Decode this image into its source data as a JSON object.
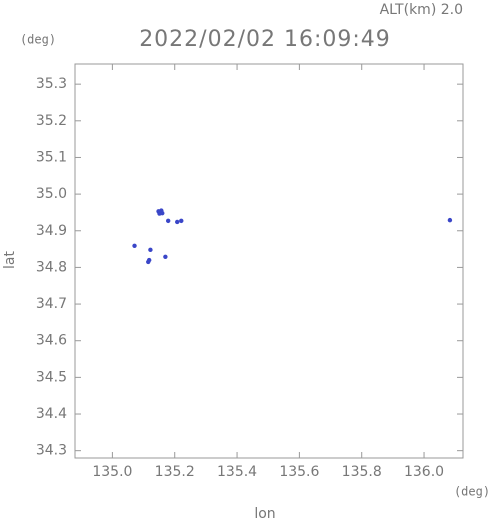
{
  "chart_data": {
    "type": "scatter",
    "title": "2022/02/02 16:09:49",
    "subtitle": "ALT(km) 2.0",
    "y_unit": "(deg)",
    "x_unit": "(deg)",
    "xlabel": "lon",
    "ylabel": "lat",
    "color": "#3a46c8",
    "x": [
      135.148,
      135.154,
      135.16,
      135.151,
      135.157,
      135.179,
      135.208,
      135.221,
      135.122,
      135.115,
      135.118,
      135.071,
      135.17,
      136.083
    ],
    "values": [
      34.953,
      34.951,
      34.948,
      34.947,
      34.955,
      34.927,
      34.924,
      34.927,
      34.848,
      34.815,
      34.82,
      34.859,
      34.829,
      34.929
    ],
    "xlim": [
      134.88,
      136.125
    ],
    "ylim": [
      34.28,
      35.355
    ],
    "xticks": [
      {
        "value": 135.0,
        "label": "135.0"
      },
      135.2,
      135.4,
      135.6,
      135.8,
      {
        "value": 136.0,
        "label": "136.0"
      }
    ],
    "yticks": [
      34.3,
      34.4,
      34.5,
      34.6,
      34.7,
      34.8,
      34.9,
      {
        "value": 35.0,
        "label": "35.0"
      },
      35.1,
      35.2,
      35.3
    ]
  }
}
